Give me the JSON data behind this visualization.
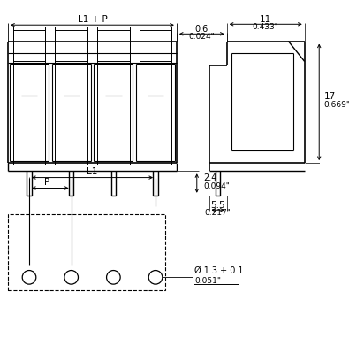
{
  "bg_color": "#ffffff",
  "line_color": "#000000",
  "dim_L1P_label": "L1 + P",
  "dim_06_label": "0.6",
  "dim_06_inch": "0.024\"",
  "dim_11_label": "11",
  "dim_11_inch": "0.433\"",
  "dim_24_label": "2.4",
  "dim_24_inch": "0.094\"",
  "dim_17_label": "17",
  "dim_17_inch": "0.669\"",
  "dim_55_label": "5.5",
  "dim_55_inch": "0.217\"",
  "dim_L1_label": "L1",
  "dim_P_label": "P",
  "dim_hole_label": "Ø 1.3 + 0.1",
  "dim_hole_inch": "0.051\""
}
